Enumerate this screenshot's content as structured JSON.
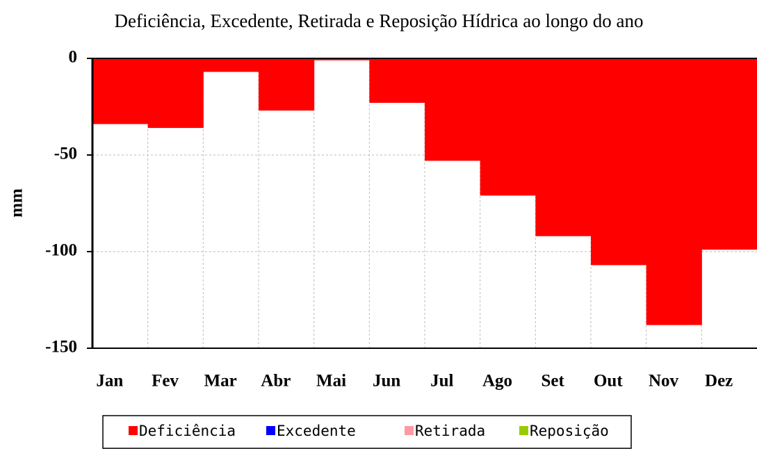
{
  "chart_data": {
    "type": "bar",
    "title": "Deficiência, Excedente, Retirada e Reposição Hídrica ao longo do ano",
    "y_label": "mm",
    "categories": [
      "Jan",
      "Fev",
      "Mar",
      "Abr",
      "Mai",
      "Jun",
      "Jul",
      "Ago",
      "Set",
      "Out",
      "Nov",
      "Dez"
    ],
    "series": [
      {
        "name": "Deficiência",
        "color": "#ff0000",
        "values": [
          -34,
          -36,
          -7,
          -27,
          -1,
          -23,
          -53,
          -71,
          -92,
          -107,
          -138,
          -99
        ]
      },
      {
        "name": "Excedente",
        "color": "#0000ff",
        "values": [
          0,
          0,
          0,
          0,
          0,
          0,
          0,
          0,
          0,
          0,
          0,
          0
        ]
      },
      {
        "name": "Retirada",
        "color": "#ff99a0",
        "values": [
          0,
          0,
          0,
          0,
          0,
          0,
          0,
          0,
          0,
          0,
          0,
          0
        ]
      },
      {
        "name": "Reposição",
        "color": "#99cc00",
        "values": [
          0,
          0,
          0,
          0,
          0,
          0,
          0,
          0,
          0,
          0,
          0,
          0
        ]
      }
    ],
    "ylim": [
      -150,
      0
    ],
    "yticks": [
      -150,
      -100,
      -50,
      0
    ],
    "grid": true
  }
}
